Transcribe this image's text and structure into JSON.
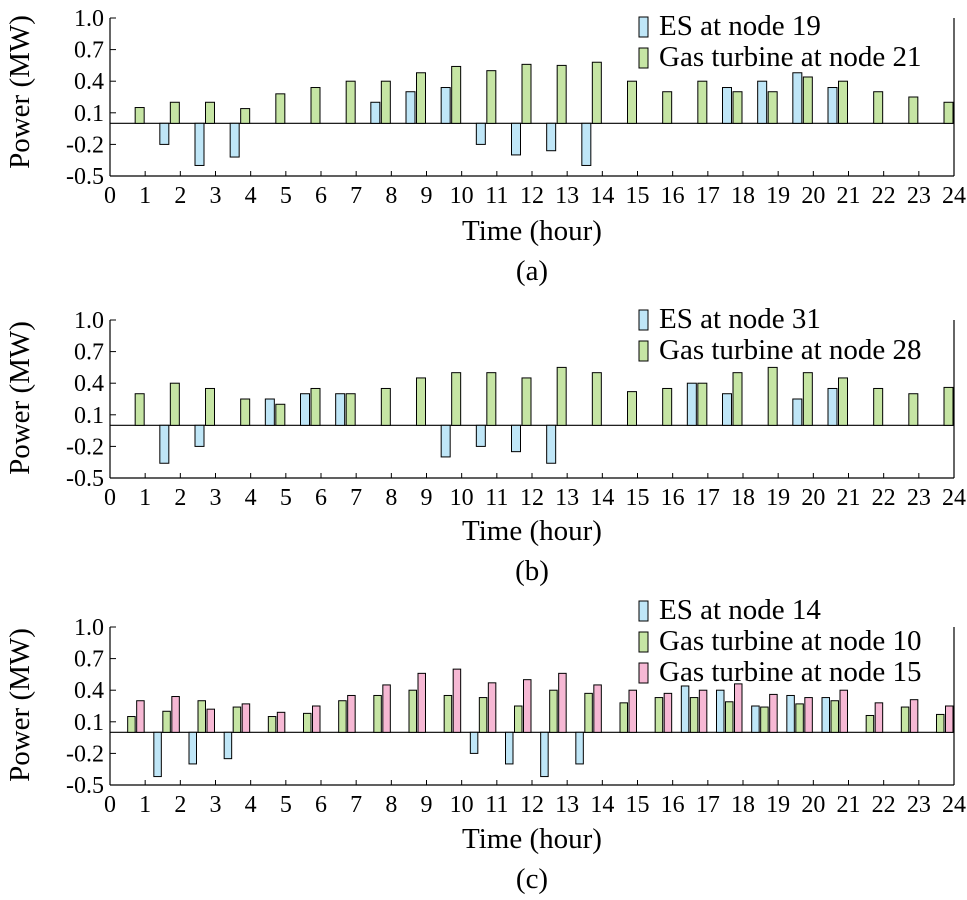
{
  "charts": [
    {
      "chart_data": {
        "type": "bar",
        "caption": "(a)",
        "xlabel": "Time (hour)",
        "ylabel": "Power (MW)",
        "ylim": [
          -0.5,
          1.0
        ],
        "yticks": [
          "1.0",
          "0.7",
          "0.4",
          "0.1",
          "-0.2",
          "-0.5"
        ],
        "xticks": [
          "0",
          "1",
          "2",
          "3",
          "4",
          "5",
          "6",
          "7",
          "8",
          "9",
          "10",
          "11",
          "12",
          "13",
          "14",
          "15",
          "16",
          "17",
          "18",
          "19",
          "20",
          "21",
          "22",
          "23",
          "24"
        ],
        "legend_position": "top-right",
        "grid": false,
        "series": [
          {
            "name": "ES at node 19",
            "color": "#bfe6f7",
            "values": [
              0,
              -0.2,
              -0.4,
              -0.32,
              0,
              0,
              0,
              0.2,
              0.3,
              0.34,
              -0.2,
              -0.3,
              -0.26,
              -0.4,
              0,
              0,
              0,
              0.34,
              0.4,
              0.48,
              0.34,
              0,
              0,
              0
            ]
          },
          {
            "name": "Gas turbine at node 21",
            "color": "#c6e5a4",
            "values": [
              0.15,
              0.2,
              0.2,
              0.14,
              0.28,
              0.34,
              0.4,
              0.4,
              0.48,
              0.54,
              0.5,
              0.56,
              0.55,
              0.58,
              0.4,
              0.3,
              0.4,
              0.3,
              0.3,
              0.44,
              0.4,
              0.3,
              0.25,
              0.2
            ]
          }
        ]
      }
    },
    {
      "chart_data": {
        "type": "bar",
        "caption": "(b)",
        "xlabel": "Time (hour)",
        "ylabel": "Power (MW)",
        "ylim": [
          -0.5,
          1.0
        ],
        "yticks": [
          "1.0",
          "0.7",
          "0.4",
          "0.1",
          "-0.2",
          "-0.5"
        ],
        "xticks": [
          "0",
          "1",
          "2",
          "3",
          "4",
          "5",
          "6",
          "7",
          "8",
          "9",
          "10",
          "11",
          "12",
          "13",
          "14",
          "15",
          "16",
          "17",
          "18",
          "19",
          "20",
          "21",
          "22",
          "23",
          "24"
        ],
        "legend_position": "top-right",
        "grid": false,
        "series": [
          {
            "name": "ES at node 31",
            "color": "#bfe6f7",
            "values": [
              0,
              -0.36,
              -0.2,
              0,
              0.25,
              0.3,
              0.3,
              0,
              0,
              -0.3,
              -0.2,
              -0.25,
              -0.36,
              0,
              0,
              0,
              0.4,
              0.3,
              0,
              0.25,
              0.35,
              0,
              0,
              0
            ]
          },
          {
            "name": "Gas turbine at node 28",
            "color": "#c6e5a4",
            "values": [
              0.3,
              0.4,
              0.35,
              0.25,
              0.2,
              0.35,
              0.3,
              0.35,
              0.45,
              0.5,
              0.5,
              0.45,
              0.55,
              0.5,
              0.32,
              0.35,
              0.4,
              0.5,
              0.55,
              0.5,
              0.45,
              0.35,
              0.3,
              0.36
            ]
          }
        ]
      }
    },
    {
      "chart_data": {
        "type": "bar",
        "caption": "(c)",
        "xlabel": "Time (hour)",
        "ylabel": "Power (MW)",
        "ylim": [
          -0.5,
          1.0
        ],
        "yticks": [
          "1.0",
          "0.7",
          "0.4",
          "0.1",
          "-0.2",
          "-0.5"
        ],
        "xticks": [
          "0",
          "1",
          "2",
          "3",
          "4",
          "5",
          "6",
          "7",
          "8",
          "9",
          "10",
          "11",
          "12",
          "13",
          "14",
          "15",
          "16",
          "17",
          "18",
          "19",
          "20",
          "21",
          "22",
          "23",
          "24"
        ],
        "legend_position": "top-right",
        "grid": false,
        "series": [
          {
            "name": "ES at node 14",
            "color": "#bfe6f7",
            "values": [
              0,
              -0.42,
              -0.3,
              -0.25,
              0,
              0,
              0,
              0,
              0,
              0,
              -0.2,
              -0.3,
              -0.42,
              -0.3,
              0,
              0,
              0.44,
              0.4,
              0.25,
              0.35,
              0.33,
              0,
              0,
              0
            ]
          },
          {
            "name": "Gas turbine at node 10",
            "color": "#c6e5a4",
            "values": [
              0.15,
              0.2,
              0.3,
              0.24,
              0.15,
              0.18,
              0.3,
              0.35,
              0.4,
              0.35,
              0.33,
              0.25,
              0.4,
              0.37,
              0.28,
              0.33,
              0.33,
              0.29,
              0.24,
              0.27,
              0.3,
              0.16,
              0.24,
              0.17
            ]
          },
          {
            "name": "Gas turbine at node 15",
            "color": "#f6b8d4",
            "values": [
              0.3,
              0.34,
              0.22,
              0.27,
              0.19,
              0.25,
              0.35,
              0.45,
              0.56,
              0.6,
              0.47,
              0.5,
              0.56,
              0.45,
              0.4,
              0.37,
              0.4,
              0.46,
              0.36,
              0.33,
              0.4,
              0.28,
              0.31,
              0.25
            ]
          }
        ]
      }
    }
  ]
}
